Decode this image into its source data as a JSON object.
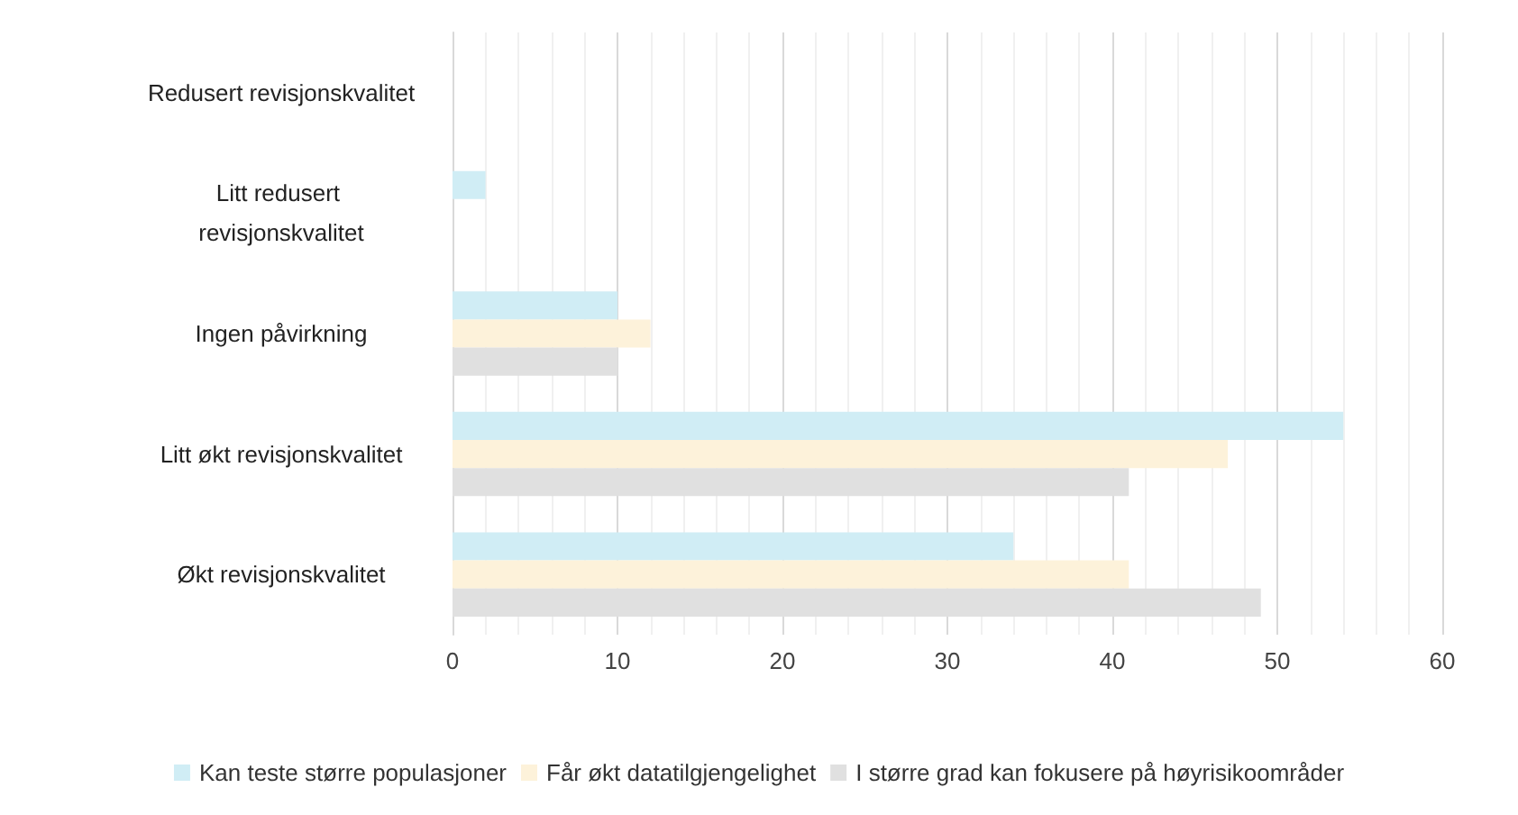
{
  "chart_data": {
    "type": "bar",
    "orientation": "horizontal",
    "categories": [
      "Redusert revisjonskvalitet",
      "Litt redusert revisjonskvalitet",
      "Ingen påvirkning",
      "Litt økt revisjonskvalitet",
      "Økt revisjonskvalitet"
    ],
    "series": [
      {
        "name": "Kan teste større populasjoner",
        "color": "#d0edf5",
        "values": [
          0,
          2,
          10,
          54,
          34
        ]
      },
      {
        "name": "Får økt datatilgjengelighet",
        "color": "#fdf2da",
        "values": [
          0,
          0,
          12,
          47,
          41
        ]
      },
      {
        "name": "I større grad kan fokusere på høyrisikoområder",
        "color": "#e0e0e0",
        "values": [
          0,
          0,
          10,
          41,
          49
        ]
      }
    ],
    "xlim": [
      0,
      60
    ],
    "xticks": [
      0,
      10,
      20,
      30,
      40,
      50,
      60
    ],
    "grid": "x",
    "legend": "bottom"
  }
}
